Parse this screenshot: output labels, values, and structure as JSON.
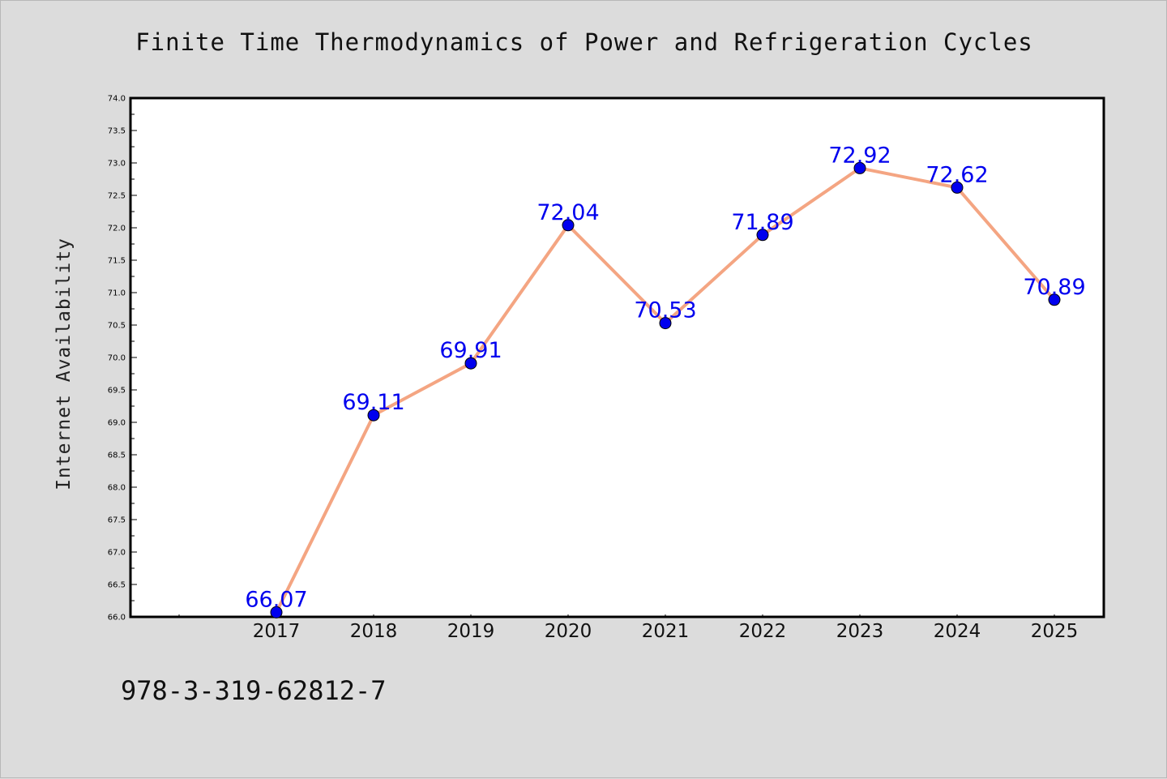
{
  "chart_data": {
    "type": "line",
    "title": "Finite Time Thermodynamics of Power and Refrigeration Cycles",
    "ylabel": "Internet Availability",
    "xlabel": "",
    "categories": [
      "2017",
      "2018",
      "2019",
      "2020",
      "2021",
      "2022",
      "2023",
      "2024",
      "2025"
    ],
    "series": [
      {
        "values": [
          66.07,
          69.11,
          69.91,
          72.04,
          70.53,
          71.89,
          72.92,
          72.62,
          70.89
        ],
        "labels": [
          "66.07",
          "69.11",
          "69.91",
          "72.04",
          "70.53",
          "71.89",
          "72.92",
          "72.62",
          "70.89"
        ]
      }
    ],
    "ylim": [
      66.0,
      74.0
    ],
    "yticks": [
      "66.0",
      "66.5",
      "67.0",
      "67.5",
      "68.0",
      "68.5",
      "69.0",
      "69.5",
      "70.0",
      "70.5",
      "71.0",
      "71.5",
      "72.0",
      "72.5",
      "73.0",
      "73.5",
      "74.0"
    ],
    "grid": false,
    "legend": "none",
    "colors": {
      "line": "#f4a582",
      "marker": "#0000ee",
      "label": "#0000ee",
      "axes": "#000000",
      "plot_bg": "#ffffff"
    }
  },
  "footer": {
    "isbn": "978-3-319-62812-7"
  }
}
